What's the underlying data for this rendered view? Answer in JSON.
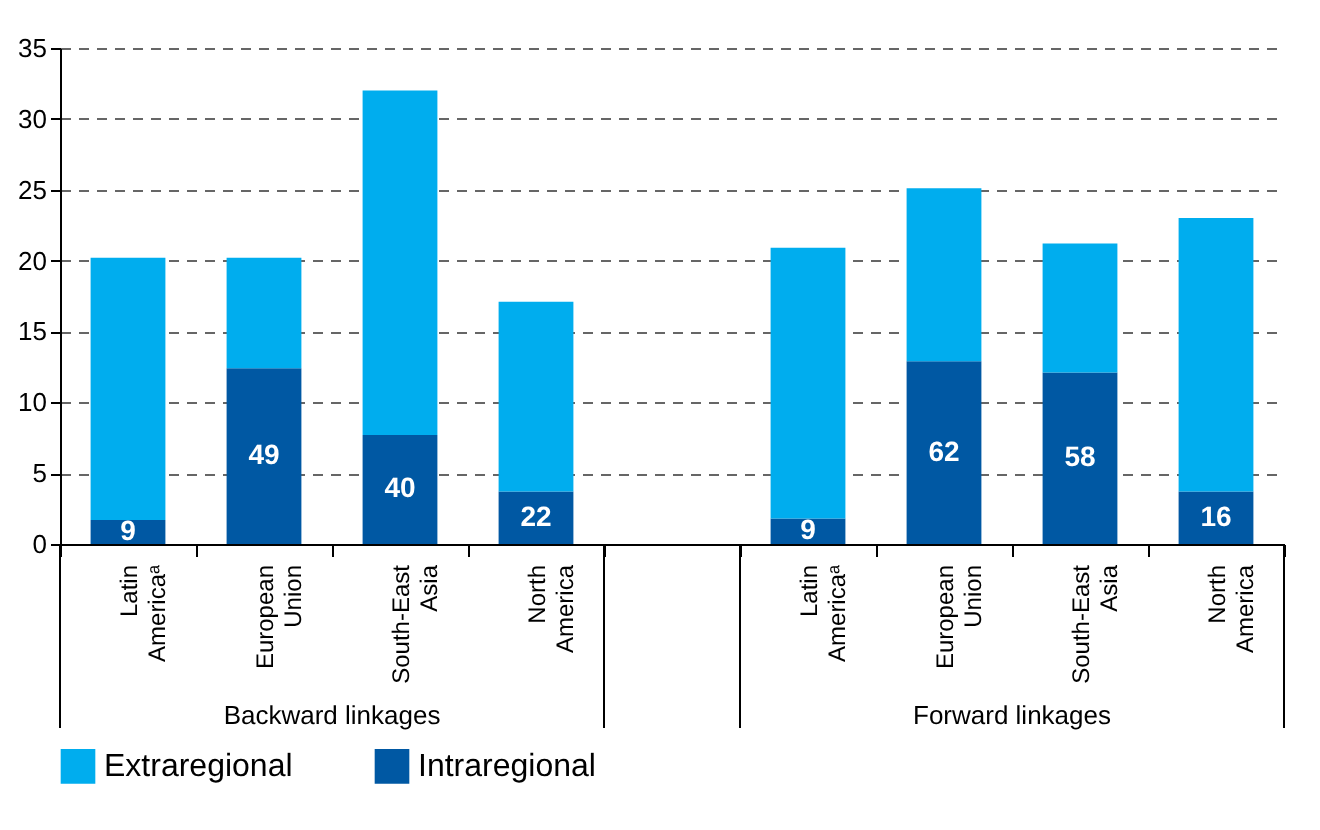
{
  "chart_data": {
    "type": "bar",
    "stacked": true,
    "categories": [
      "Latin Americaᵃ",
      "European Union",
      "South-East Asia",
      "North America",
      null,
      "Latin Americaᵃ",
      "European Union",
      "South-East Asia",
      "North America"
    ],
    "series": [
      {
        "name": "Intraregional",
        "color": "#0058a3",
        "values": [
          1.7,
          12.4,
          7.7,
          3.7,
          null,
          1.8,
          12.9,
          12.1,
          3.7
        ]
      },
      {
        "name": "Extraregional",
        "color": "#00adee",
        "values": [
          18.5,
          7.8,
          24.3,
          13.4,
          null,
          19.1,
          12.2,
          9.1,
          19.3
        ]
      }
    ],
    "ylim": [
      0,
      35
    ],
    "yticks": [
      0,
      5,
      10,
      15,
      20,
      25,
      30,
      35
    ],
    "grid": "y",
    "legend": "bottom",
    "annotations": [
      "Backward linkages",
      "Forward linkages",
      "9",
      "49",
      "40",
      "22",
      "9",
      "62",
      "58",
      "16"
    ]
  }
}
